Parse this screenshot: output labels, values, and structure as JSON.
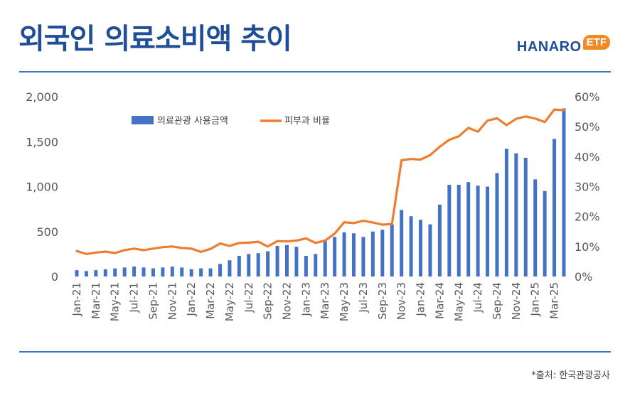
{
  "header": {
    "title": "외국인 의료소비액 추이"
  },
  "logo": {
    "main": "HANARO",
    "badge": "ETF"
  },
  "source": "*출처: 한국관광공사",
  "colors": {
    "bar": "#4472c4",
    "line": "#ed7d31",
    "title": "#1f4e96",
    "rule": "#3a78c2"
  },
  "chart_data": {
    "type": "bar",
    "categories": [
      "Jan-21",
      "Feb-21",
      "Mar-21",
      "Apr-21",
      "May-21",
      "Jun-21",
      "Jul-21",
      "Aug-21",
      "Sep-21",
      "Oct-21",
      "Nov-21",
      "Dec-21",
      "Jan-22",
      "Feb-22",
      "Mar-22",
      "Apr-22",
      "May-22",
      "Jun-22",
      "Jul-22",
      "Aug-22",
      "Sep-22",
      "Oct-22",
      "Nov-22",
      "Dec-22",
      "Jan-23",
      "Feb-23",
      "Mar-23",
      "Apr-23",
      "May-23",
      "Jun-23",
      "Jul-23",
      "Aug-23",
      "Sep-23",
      "Oct-23",
      "Nov-23",
      "Dec-23",
      "Jan-24",
      "Feb-24",
      "Mar-24",
      "Apr-24",
      "May-24",
      "Jun-24",
      "Jul-24",
      "Aug-24",
      "Sep-24",
      "Oct-24",
      "Nov-24",
      "Dec-24",
      "Jan-25",
      "Feb-25",
      "Mar-25",
      "Apr-25"
    ],
    "tick_labels": [
      "Jan-21",
      "Mar-21",
      "May-21",
      "Jul-21",
      "Sep-21",
      "Nov-21",
      "Jan-22",
      "Mar-22",
      "May-22",
      "Jul-22",
      "Sep-22",
      "Nov-22",
      "Jan-23",
      "Mar-23",
      "May-23",
      "Jul-23",
      "Sep-23",
      "Nov-23",
      "Jan-24",
      "Mar-24",
      "May-24",
      "Jul-24",
      "Sep-24",
      "Nov-24",
      "Jan-25",
      "Mar-25"
    ],
    "series": [
      {
        "name": "의료관광 사용금액",
        "type": "bar",
        "axis": "left",
        "values": [
          70,
          60,
          70,
          80,
          90,
          100,
          110,
          100,
          90,
          100,
          110,
          100,
          80,
          90,
          90,
          140,
          180,
          230,
          250,
          260,
          280,
          340,
          350,
          330,
          230,
          250,
          400,
          440,
          490,
          480,
          440,
          500,
          520,
          580,
          740,
          670,
          630,
          580,
          800,
          1020,
          1020,
          1050,
          1010,
          1000,
          1150,
          1420,
          1370,
          1320,
          1080,
          950,
          1530,
          1870
        ]
      },
      {
        "name": "피부과 비율",
        "type": "line",
        "axis": "right",
        "values": [
          8.5,
          7.5,
          8,
          8.3,
          7.8,
          8.8,
          9.3,
          8.8,
          9.3,
          9.8,
          10,
          9.5,
          9.3,
          8.2,
          9.2,
          11,
          10.2,
          11.2,
          11.3,
          11.6,
          10,
          11.8,
          11.7,
          12,
          12.7,
          11.2,
          12,
          14.3,
          18.1,
          17.8,
          18.6,
          18,
          17.3,
          17.5,
          38.8,
          39.2,
          39,
          40.5,
          43.3,
          45.6,
          46.8,
          49.6,
          48.3,
          52,
          52.8,
          50.5,
          52.6,
          53.4,
          52.7,
          51.5,
          55.7,
          55.5
        ]
      }
    ],
    "left_axis": {
      "ticks": [
        "0",
        "500",
        "1,000",
        "1,500",
        "2,000"
      ],
      "values": [
        0,
        500,
        1000,
        1500,
        2000
      ],
      "range": [
        0,
        2000
      ]
    },
    "right_axis": {
      "ticks": [
        "0%",
        "10%",
        "20%",
        "30%",
        "40%",
        "50%",
        "60%"
      ],
      "values": [
        0,
        10,
        20,
        30,
        40,
        50,
        60
      ],
      "range": [
        0,
        60
      ]
    },
    "legend": {
      "position": "top-center"
    },
    "grid": false
  }
}
